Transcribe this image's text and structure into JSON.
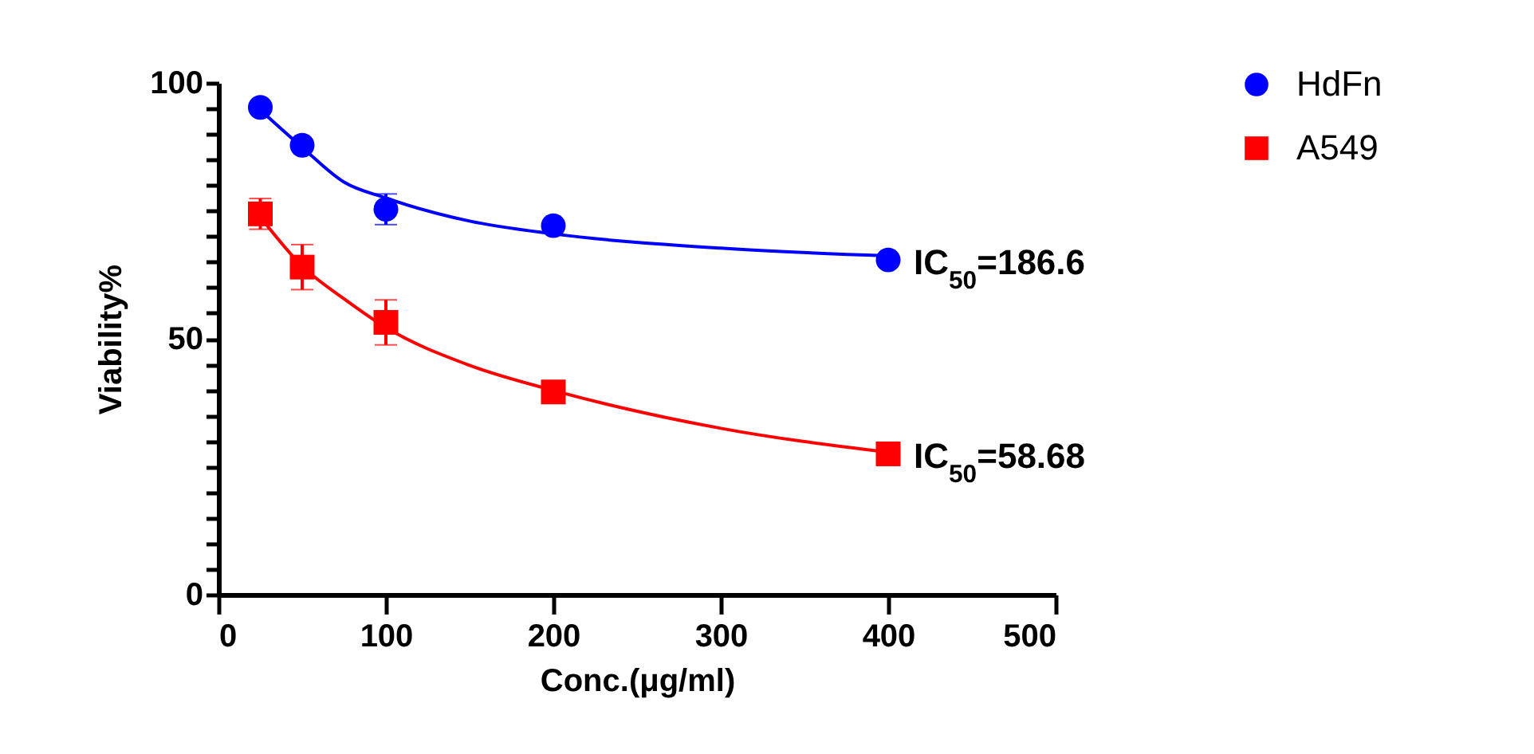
{
  "chart_data": {
    "type": "scatter",
    "xlabel": "Conc.(μg/ml)",
    "ylabel": "Viability%",
    "xlim": [
      0,
      500
    ],
    "xticks": [
      0,
      100,
      200,
      300,
      400,
      500
    ],
    "ylim": [
      0,
      100
    ],
    "yticks": [
      0,
      {
        "value": 5,
        "label": null
      },
      {
        "value": 10,
        "label": null
      },
      {
        "value": 15,
        "label": null
      },
      {
        "value": 20,
        "label": null
      },
      {
        "value": 25,
        "label": null
      },
      {
        "value": 30,
        "label": null
      },
      {
        "value": 35,
        "label": null
      },
      {
        "value": 40,
        "label": null
      },
      {
        "value": 45,
        "label": null
      },
      50,
      {
        "value": 55,
        "label": null
      },
      {
        "value": 60,
        "label": null
      },
      {
        "value": 65,
        "label": null
      },
      {
        "value": 70,
        "label": null
      },
      {
        "value": 75,
        "label": null
      },
      {
        "value": 80,
        "label": null
      },
      {
        "value": 85,
        "label": null
      },
      {
        "value": 90,
        "label": null
      },
      {
        "value": 95,
        "label": null
      },
      100
    ],
    "legend": "top right",
    "series": [
      {
        "name": "HdFn",
        "marker": "circle",
        "color": "#0000ff",
        "x": [
          25,
          50,
          100,
          200,
          400
        ],
        "values": [
          95.2,
          87.8,
          75.3,
          72.1,
          65.4
        ],
        "errors": [
          null,
          null,
          3,
          null,
          null
        ]
      },
      {
        "name": "A549",
        "marker": "square",
        "color": "#ff0000",
        "x": [
          25,
          50,
          100,
          200,
          400
        ],
        "values": [
          74.4,
          64.0,
          53.2,
          39.6,
          27.5
        ],
        "errors": [
          3,
          4.4,
          4.4,
          null,
          1.5
        ]
      },
      {
        "type": "line",
        "color": "#0000ff",
        "x": [
          25,
          50,
          75,
          100,
          150,
          200,
          300,
          400
        ],
        "values": [
          94.7,
          87.4,
          80.6,
          77.5,
          73,
          70.5,
          67.7,
          66.2
        ]
      },
      {
        "type": "line",
        "color": "#ff0000",
        "x": [
          25,
          50,
          75,
          100,
          150,
          200,
          300,
          400
        ],
        "values": [
          73.8,
          64.2,
          57.8,
          52.2,
          44.8,
          39.9,
          32.5,
          27.8
        ]
      }
    ],
    "annotations": [
      {
        "text": "IC$_{50}$=186.6",
        "x": 400,
        "y": 65.4
      },
      {
        "text": "IC$_{50}$=58.68",
        "x": 400,
        "y": 27.5
      }
    ]
  }
}
